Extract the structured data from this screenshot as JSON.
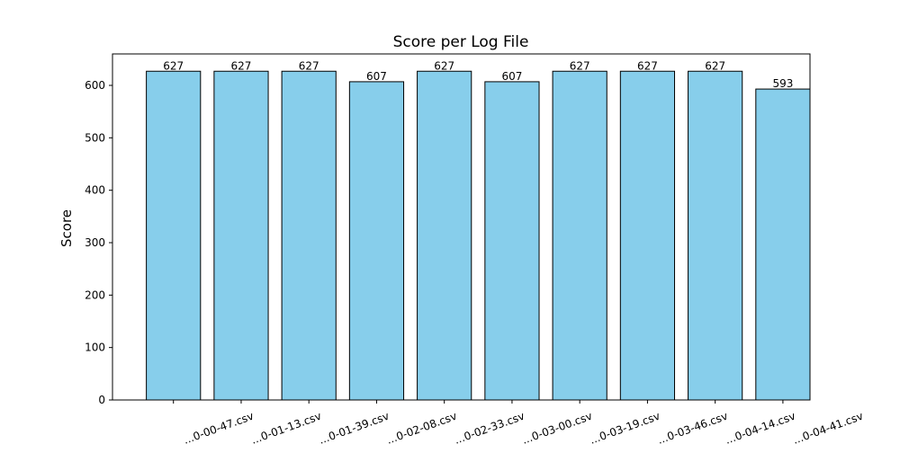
{
  "chart_data": {
    "type": "bar",
    "title": "Score per Log File",
    "xlabel": "",
    "ylabel": "Score",
    "categories": [
      "...0-00-47.csv",
      "...0-01-13.csv",
      "...0-01-39.csv",
      "...0-02-08.csv",
      "...0-02-33.csv",
      "...0-03-00.csv",
      "...0-03-19.csv",
      "...0-03-46.csv",
      "...0-04-14.csv",
      "...0-04-41.csv"
    ],
    "values": [
      627,
      627,
      627,
      607,
      627,
      607,
      627,
      627,
      627,
      593
    ],
    "data_labels": [
      "627",
      "627",
      "627",
      "607",
      "627",
      "607",
      "627",
      "627",
      "627",
      "593"
    ],
    "ylim": [
      0,
      660
    ],
    "yticks": [
      0,
      100,
      200,
      300,
      400,
      500,
      600
    ],
    "ytick_labels": [
      "0",
      "100",
      "200",
      "300",
      "400",
      "500",
      "600"
    ],
    "bar_color": "#87ceeb",
    "bar_edge_color": "#000000",
    "grid": false,
    "legend": "none"
  }
}
